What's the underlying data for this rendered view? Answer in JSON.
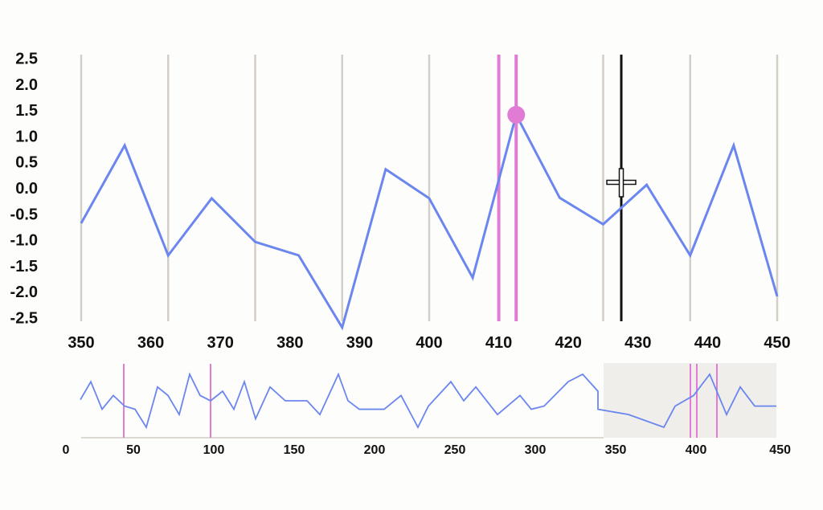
{
  "chart_data": [
    {
      "type": "line",
      "role": "main",
      "xlim": [
        350,
        450
      ],
      "ylim": [
        -2.5,
        2.5
      ],
      "x_ticks": [
        350,
        360,
        370,
        380,
        390,
        400,
        410,
        420,
        430,
        440,
        450
      ],
      "y_ticks": [
        "2.5",
        "2.0",
        "1.5",
        "1.0",
        "0.5",
        "0.0",
        "-0.5",
        "-1.0",
        "-1.5",
        "-2.0",
        "-2.5"
      ],
      "grid": "vertical",
      "gridlines_x": [
        350,
        362.5,
        375,
        387.5,
        400,
        412.5,
        425,
        437.5,
        450
      ],
      "x": [
        350,
        356.25,
        362.5,
        368.75,
        375,
        381.25,
        387.5,
        393.75,
        400,
        406.25,
        412.5,
        418.75,
        425,
        431.25,
        437.5,
        443.75,
        450
      ],
      "y": [
        -0.68,
        0.82,
        -1.3,
        -0.2,
        -1.04,
        -1.3,
        -2.69,
        0.36,
        -0.2,
        -1.73,
        1.41,
        -0.19,
        -0.7,
        0.06,
        -1.3,
        0.82,
        -2.09
      ],
      "highlight_lines_x": [
        410,
        412.5
      ],
      "highlight_point": {
        "x": 412.5,
        "y": 1.41
      },
      "cursor_line_x": 427.6,
      "colors": {
        "line": "#6b86ee",
        "highlight": "#e07cd4",
        "grid": "#d3cfc6",
        "cursor": "#111111"
      }
    },
    {
      "type": "line",
      "role": "overview",
      "xlim": [
        0,
        450
      ],
      "x_ticks": [
        0,
        50,
        100,
        150,
        200,
        250,
        300,
        350,
        400,
        450
      ],
      "x": [
        17,
        23.5,
        30.5,
        37.5,
        44.5,
        51,
        58,
        65,
        71.5,
        78.5,
        85,
        91.5,
        98,
        105.5,
        112.5,
        119,
        126,
        135,
        144.5,
        158,
        166,
        177.5,
        183.5,
        190.5,
        206,
        216.5,
        227,
        233.5,
        247.5,
        255.5,
        263,
        276.5,
        290.5,
        297.5,
        305.5,
        320.5,
        329.5,
        339,
        339,
        358,
        380,
        387,
        398.5,
        408.5,
        419,
        427.5,
        436.5,
        450
      ],
      "y": [
        0.1,
        1.8,
        -0.8,
        0.5,
        -0.5,
        -0.8,
        -2.5,
        1.3,
        0.5,
        -1.3,
        2.5,
        0.5,
        0,
        0.9,
        -0.8,
        1.8,
        -1.7,
        1.3,
        0,
        0,
        -1.3,
        2.5,
        0,
        -0.8,
        -0.8,
        0.5,
        -2.5,
        -0.5,
        1.8,
        0,
        1.3,
        -1.3,
        0.5,
        -0.8,
        -0.5,
        1.8,
        2.5,
        0.9,
        -0.8,
        -1.3,
        -2.5,
        -0.5,
        0.5,
        2.5,
        -1.3,
        1.3,
        -0.5,
        -0.5
      ],
      "highlight_lines_x": [
        44,
        98,
        396.5,
        400.5,
        413
      ],
      "brush_range": [
        342.5,
        450
      ],
      "colors": {
        "line": "#6b86ee",
        "highlight": "#e07cd4",
        "brush": "#efeeeb",
        "axis": "#dcd9d2"
      }
    }
  ]
}
